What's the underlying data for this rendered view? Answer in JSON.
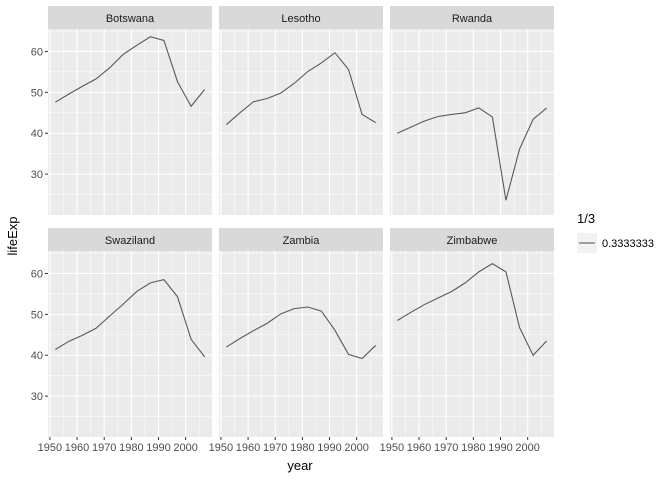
{
  "chart_data": {
    "type": "line",
    "x_label": "year",
    "y_label": "lifeExp",
    "x_ticks": [
      1950,
      1960,
      1970,
      1980,
      1990,
      2000
    ],
    "y_ticks": [
      30,
      40,
      50,
      60
    ],
    "xlim": [
      1949.3,
      2009.7
    ],
    "ylim": [
      20.0,
      65.5
    ],
    "grid": true,
    "legend": {
      "title": "1/3",
      "entries": [
        {
          "label": "0.3333333"
        }
      ],
      "position": "right"
    },
    "x": [
      1952,
      1957,
      1962,
      1967,
      1972,
      1977,
      1982,
      1987,
      1992,
      1997,
      2002,
      2007
    ],
    "panels": [
      {
        "name": "Botswana",
        "values": [
          47.6,
          49.6,
          51.5,
          53.3,
          56.0,
          59.3,
          61.5,
          63.6,
          62.7,
          52.6,
          46.6,
          50.7
        ]
      },
      {
        "name": "Lesotho",
        "values": [
          42.1,
          45.0,
          47.7,
          48.5,
          49.8,
          52.2,
          55.1,
          57.2,
          59.7,
          55.6,
          44.6,
          42.6
        ]
      },
      {
        "name": "Rwanda",
        "values": [
          40.0,
          41.5,
          43.0,
          44.1,
          44.6,
          45.0,
          46.2,
          44.0,
          23.6,
          36.1,
          43.4,
          46.2
        ]
      },
      {
        "name": "Swaziland",
        "values": [
          41.4,
          43.4,
          44.9,
          46.6,
          49.6,
          52.5,
          55.6,
          57.7,
          58.5,
          54.3,
          43.9,
          39.6
        ]
      },
      {
        "name": "Zambia",
        "values": [
          42.0,
          44.1,
          46.0,
          47.8,
          50.1,
          51.4,
          51.8,
          50.8,
          46.1,
          40.2,
          39.2,
          42.4
        ]
      },
      {
        "name": "Zimbabwe",
        "values": [
          48.5,
          50.5,
          52.4,
          54.0,
          55.6,
          57.7,
          60.4,
          62.4,
          60.4,
          46.8,
          39.99,
          43.5
        ]
      }
    ],
    "colors": {
      "panel_bg": "#ebebeb",
      "strip_bg": "#d9d9d9",
      "grid_major": "#ffffff",
      "line": "#595959"
    }
  }
}
